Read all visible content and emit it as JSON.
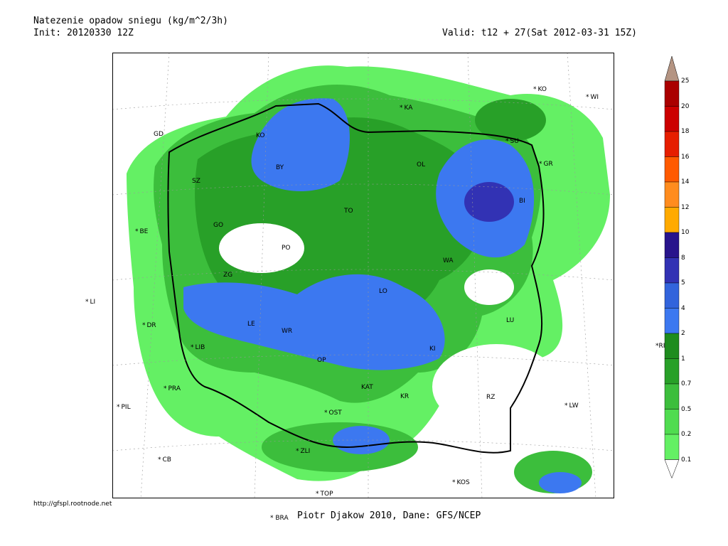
{
  "header": {
    "title": "Natezenie opadow sniegu (kg/m^2/3h)",
    "init": "Init: 20120330 12Z",
    "valid": "Valid: t12 + 27(Sat 2012-03-31 15Z)"
  },
  "footer": {
    "url": "http://gfspl.rootnode.net",
    "credit": "Piotr Djakow 2010, Dane: GFS/NCEP",
    "bra": "BRA"
  },
  "map_labels": {
    "KA": "KA",
    "KO": "KO",
    "WI": "WI",
    "SU": "SU",
    "GR": "GR",
    "OL": "OL",
    "BI": "BI",
    "GD": "GD",
    "KO2": "KO",
    "SZ": "SZ",
    "BY": "BY",
    "TO": "TO",
    "GO": "GO",
    "PO": "PO",
    "BE": "BE",
    "ZG": "ZG",
    "WA": "WA",
    "LO": "LO",
    "LI": "LI",
    "LE": "LE",
    "WR": "WR",
    "DR": "DR",
    "LIB": "LIB",
    "LU": "LU",
    "KI": "KI",
    "OP": "OP",
    "KAT": "KAT",
    "KR": "KR",
    "RZ": "RZ",
    "PRA": "PRA",
    "PIL": "PIL",
    "LW": "LW",
    "OST": "OST",
    "ZLI": "ZLI",
    "CB": "CB",
    "KOS": "KOS",
    "TOP": "TOP",
    "RI": "RI",
    "LI_left": "LI"
  },
  "legend": {
    "units": "kg/m^2/3h",
    "levels": [
      "25",
      "20",
      "18",
      "16",
      "14",
      "12",
      "10",
      "8",
      "5",
      "4",
      "2",
      "1",
      "0.7",
      "0.5",
      "0.2",
      "0.1"
    ],
    "colors": [
      "#aa0000",
      "#cc0000",
      "#e61e00",
      "#ff5a00",
      "#ff8c1e",
      "#ffaa00",
      "#28148c",
      "#3232b4",
      "#3264dc",
      "#3c78f0",
      "#1e8c1e",
      "#28a028",
      "#3cbe3c",
      "#50dc50",
      "#64f064",
      "#b49482"
    ],
    "top_arrow_color": "#b49482"
  }
}
